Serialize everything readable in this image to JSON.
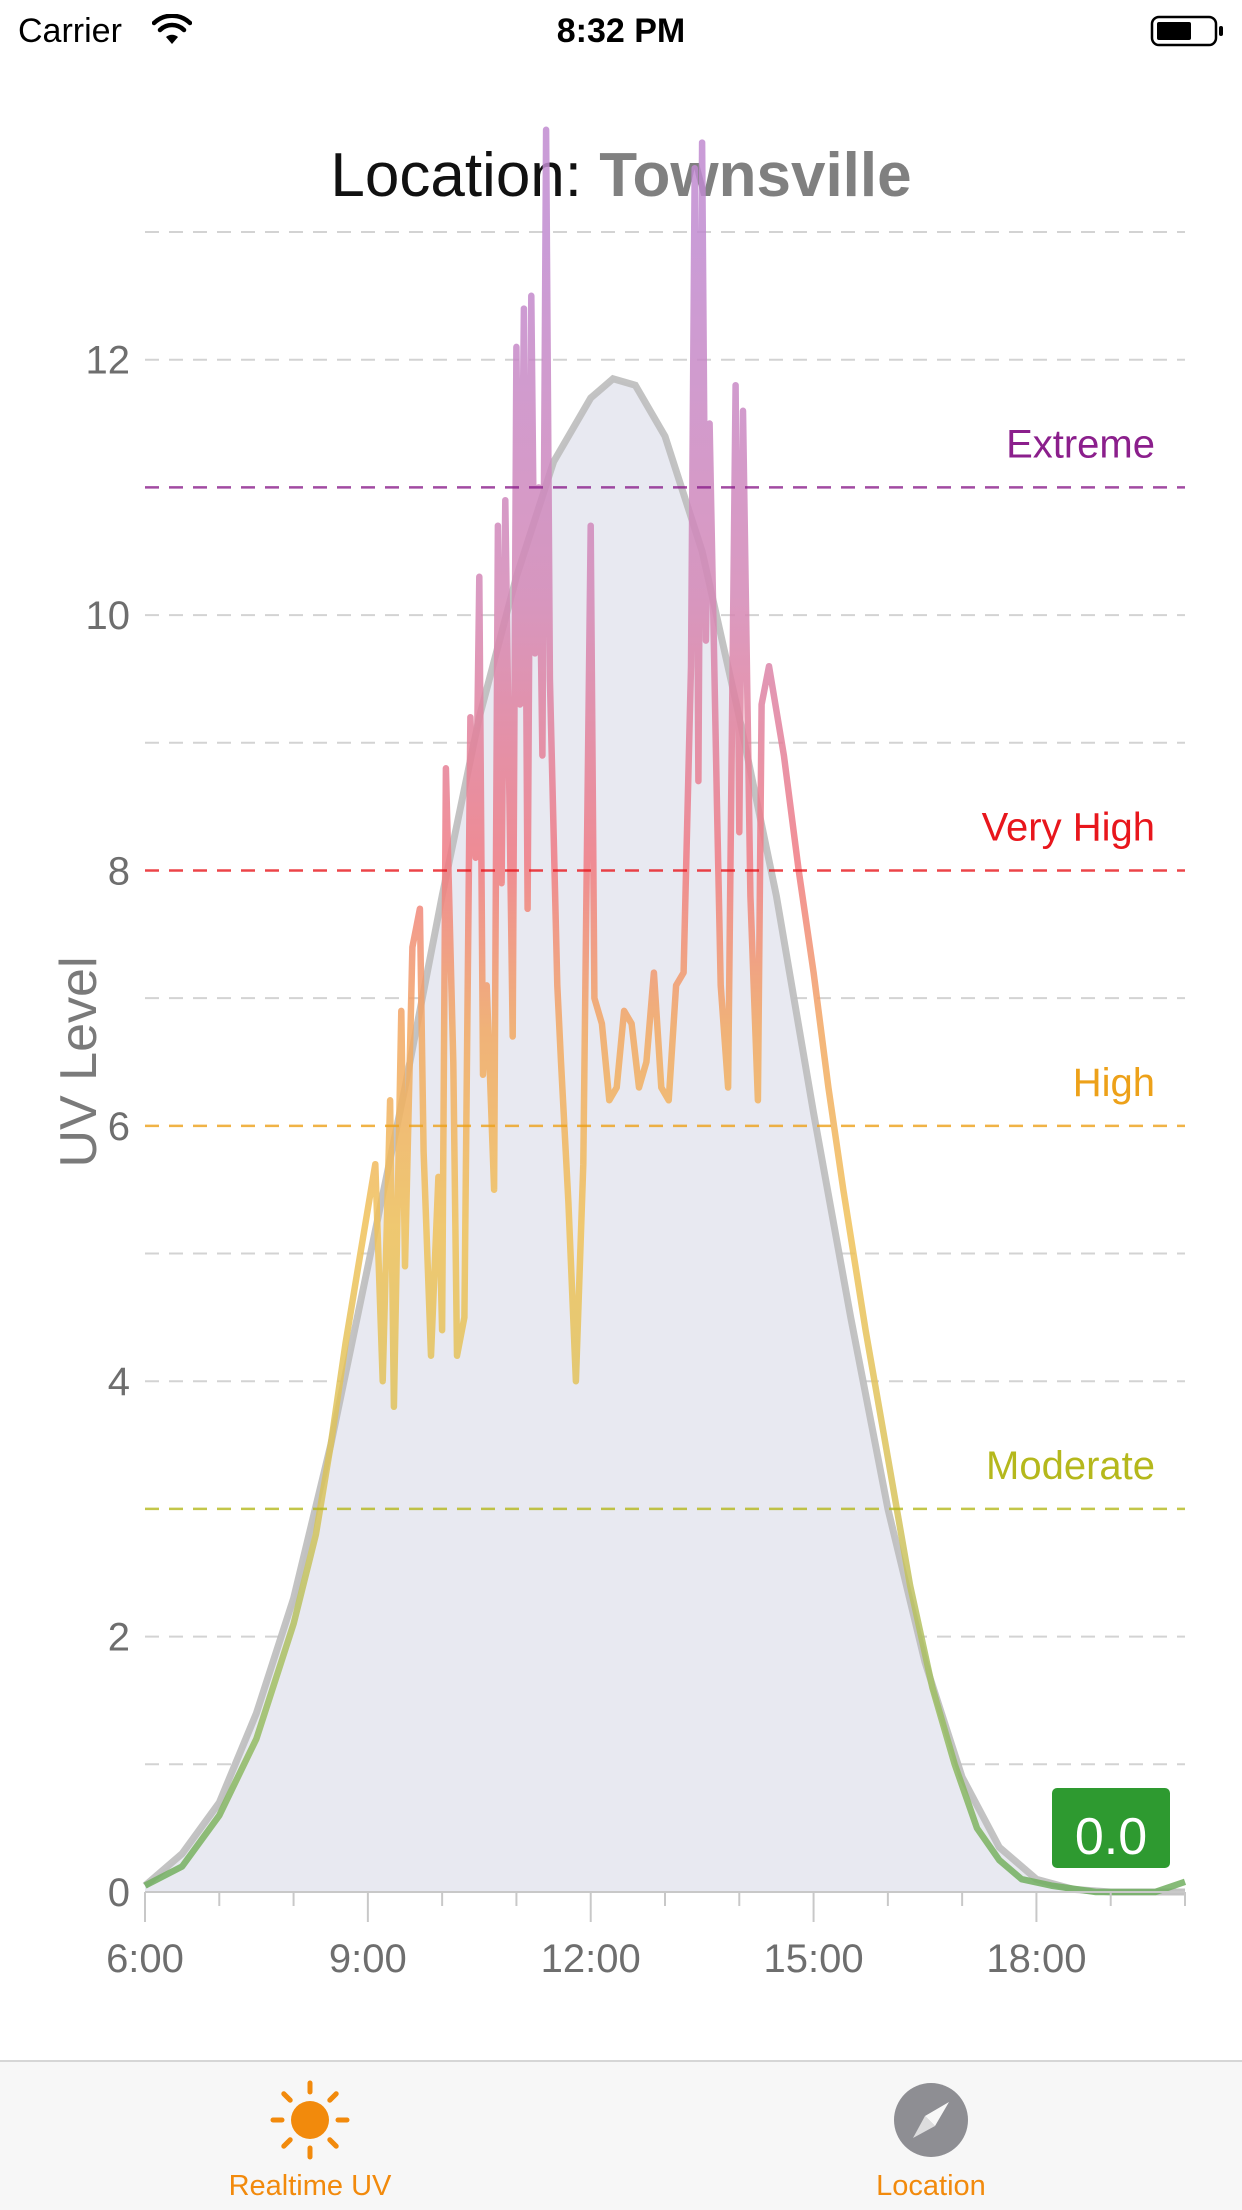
{
  "status_bar": {
    "carrier": "Carrier",
    "time": "8:32 PM"
  },
  "header": {
    "prefix": "Location: ",
    "city": "Townsville"
  },
  "colors": {
    "accent": "#f28a0c",
    "extreme": "#8b1f8c",
    "very_high": "#e8161c",
    "high": "#eda119",
    "moderate": "#b5b81c",
    "low": "#2e9a30",
    "fill": "#e8e9f1",
    "model": "#bdbdbd"
  },
  "chart_data": {
    "type": "line",
    "ylabel": "UV Level",
    "xlabel": "",
    "x_unit": "hour of day",
    "xlim": [
      6,
      20
    ],
    "ylim": [
      0,
      13
    ],
    "y_ticks": [
      0,
      2,
      4,
      6,
      8,
      10,
      12
    ],
    "y_tick_labels": [
      "0",
      "2",
      "4",
      "6",
      "8",
      "10",
      "12"
    ],
    "x_ticks": [
      6,
      9,
      12,
      15,
      18
    ],
    "x_tick_labels": [
      "6:00",
      "9:00",
      "12:00",
      "15:00",
      "18:00"
    ],
    "grid": true,
    "thresholds": [
      {
        "label": "Extreme",
        "value": 11,
        "color": "#8b1f8c"
      },
      {
        "label": "Very High",
        "value": 8,
        "color": "#e8161c"
      },
      {
        "label": "High",
        "value": 6,
        "color": "#eda119"
      },
      {
        "label": "Moderate",
        "value": 3,
        "color": "#b5b81c"
      }
    ],
    "current_value": "0.0",
    "series": [
      {
        "kind": "measured",
        "points": [
          [
            6.0,
            0.05
          ],
          [
            6.5,
            0.2
          ],
          [
            7.0,
            0.6
          ],
          [
            7.5,
            1.2
          ],
          [
            8.0,
            2.1
          ],
          [
            8.3,
            2.8
          ],
          [
            8.5,
            3.5
          ],
          [
            8.7,
            4.3
          ],
          [
            8.9,
            5.0
          ],
          [
            9.1,
            5.7
          ],
          [
            9.2,
            4.0
          ],
          [
            9.3,
            6.2
          ],
          [
            9.35,
            3.8
          ],
          [
            9.45,
            6.9
          ],
          [
            9.5,
            4.9
          ],
          [
            9.6,
            7.4
          ],
          [
            9.7,
            7.7
          ],
          [
            9.75,
            5.8
          ],
          [
            9.85,
            4.2
          ],
          [
            9.95,
            5.6
          ],
          [
            10.0,
            4.4
          ],
          [
            10.05,
            8.8
          ],
          [
            10.15,
            6.5
          ],
          [
            10.2,
            4.2
          ],
          [
            10.3,
            4.5
          ],
          [
            10.38,
            9.2
          ],
          [
            10.45,
            8.1
          ],
          [
            10.5,
            10.3
          ],
          [
            10.55,
            6.4
          ],
          [
            10.6,
            7.1
          ],
          [
            10.7,
            5.5
          ],
          [
            10.75,
            10.7
          ],
          [
            10.8,
            7.9
          ],
          [
            10.85,
            10.9
          ],
          [
            10.95,
            6.7
          ],
          [
            11.0,
            12.1
          ],
          [
            11.05,
            9.3
          ],
          [
            11.1,
            12.4
          ],
          [
            11.15,
            7.7
          ],
          [
            11.2,
            12.5
          ],
          [
            11.25,
            9.7
          ],
          [
            11.3,
            11.0
          ],
          [
            11.35,
            8.9
          ],
          [
            11.4,
            13.8
          ],
          [
            11.45,
            9.5
          ],
          [
            11.5,
            8.3
          ],
          [
            11.55,
            7.1
          ],
          [
            11.6,
            6.5
          ],
          [
            11.7,
            5.4
          ],
          [
            11.8,
            4.0
          ],
          [
            11.9,
            5.7
          ],
          [
            12.0,
            10.7
          ],
          [
            12.05,
            7.0
          ],
          [
            12.15,
            6.8
          ],
          [
            12.25,
            6.2
          ],
          [
            12.35,
            6.3
          ],
          [
            12.45,
            6.9
          ],
          [
            12.55,
            6.8
          ],
          [
            12.65,
            6.3
          ],
          [
            12.75,
            6.5
          ],
          [
            12.85,
            7.2
          ],
          [
            12.95,
            6.3
          ],
          [
            13.05,
            6.2
          ],
          [
            13.15,
            7.1
          ],
          [
            13.25,
            7.2
          ],
          [
            13.35,
            9.6
          ],
          [
            13.4,
            13.5
          ],
          [
            13.45,
            8.7
          ],
          [
            13.5,
            13.7
          ],
          [
            13.55,
            9.8
          ],
          [
            13.6,
            11.5
          ],
          [
            13.7,
            8.5
          ],
          [
            13.75,
            7.1
          ],
          [
            13.85,
            6.3
          ],
          [
            13.95,
            11.8
          ],
          [
            14.0,
            8.3
          ],
          [
            14.05,
            11.6
          ],
          [
            14.15,
            7.8
          ],
          [
            14.25,
            6.2
          ],
          [
            14.3,
            9.3
          ],
          [
            14.4,
            9.6
          ],
          [
            14.6,
            8.9
          ],
          [
            14.8,
            8.0
          ],
          [
            15.0,
            7.2
          ],
          [
            15.2,
            6.3
          ],
          [
            15.4,
            5.5
          ],
          [
            15.7,
            4.4
          ],
          [
            16.0,
            3.4
          ],
          [
            16.3,
            2.4
          ],
          [
            16.6,
            1.6
          ],
          [
            16.9,
            1.0
          ],
          [
            17.2,
            0.5
          ],
          [
            17.5,
            0.25
          ],
          [
            17.8,
            0.1
          ],
          [
            18.2,
            0.05
          ],
          [
            18.8,
            0.0
          ],
          [
            19.6,
            0.0
          ],
          [
            20.0,
            0.08
          ]
        ]
      },
      {
        "kind": "model",
        "color": "#bdbdbd",
        "points": [
          [
            6.0,
            0.05
          ],
          [
            6.5,
            0.3
          ],
          [
            7.0,
            0.7
          ],
          [
            7.5,
            1.4
          ],
          [
            8.0,
            2.3
          ],
          [
            8.5,
            3.5
          ],
          [
            9.0,
            4.9
          ],
          [
            9.5,
            6.3
          ],
          [
            10.0,
            7.8
          ],
          [
            10.5,
            9.2
          ],
          [
            11.0,
            10.3
          ],
          [
            11.5,
            11.2
          ],
          [
            12.0,
            11.7
          ],
          [
            12.3,
            11.85
          ],
          [
            12.6,
            11.8
          ],
          [
            13.0,
            11.4
          ],
          [
            13.5,
            10.5
          ],
          [
            14.0,
            9.2
          ],
          [
            14.5,
            7.8
          ],
          [
            15.0,
            6.1
          ],
          [
            15.5,
            4.5
          ],
          [
            16.0,
            3.0
          ],
          [
            16.5,
            1.8
          ],
          [
            17.0,
            0.9
          ],
          [
            17.5,
            0.35
          ],
          [
            18.0,
            0.1
          ],
          [
            18.5,
            0.02
          ],
          [
            19.0,
            0.0
          ],
          [
            20.0,
            0.0
          ]
        ]
      }
    ]
  },
  "tabs": [
    {
      "label": "Realtime UV",
      "icon": "sun-icon",
      "selected": true
    },
    {
      "label": "Location",
      "icon": "compass-icon",
      "selected": false
    }
  ]
}
